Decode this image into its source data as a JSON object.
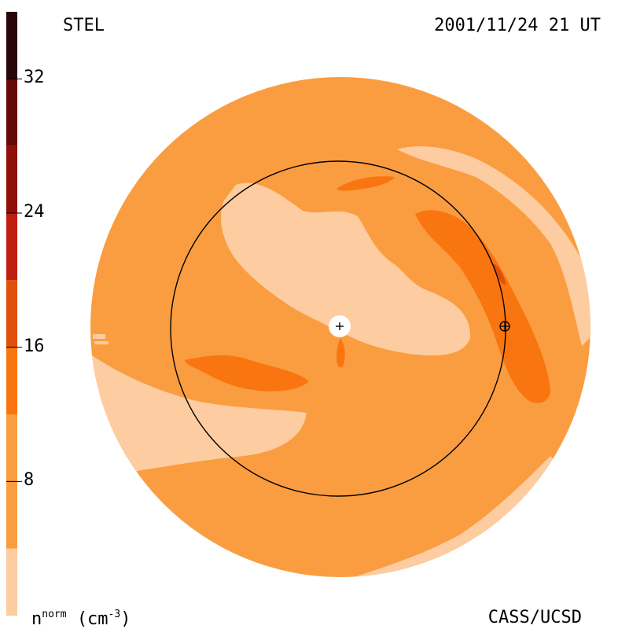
{
  "header": {
    "instrument": "STEL",
    "datetime": "2001/11/24 21 UT"
  },
  "footer": {
    "credit": "CASS/UCSD",
    "unit_base": "n",
    "unit_sup": "norm",
    "unit_rest": "(cm",
    "unit_exp": "-3",
    "unit_close": ")"
  },
  "colorbar": {
    "tick_labels": [
      "8",
      "16",
      "24",
      "32"
    ],
    "tick_values": [
      8,
      16,
      24,
      32
    ],
    "range": [
      0,
      36
    ],
    "levels": [
      {
        "min": 0,
        "max": 4,
        "color": "#fdcca0"
      },
      {
        "min": 4,
        "max": 12,
        "color": "#fa9d40"
      },
      {
        "min": 12,
        "max": 16,
        "color": "#f97510"
      },
      {
        "min": 16,
        "max": 20,
        "color": "#e0500a"
      },
      {
        "min": 20,
        "max": 24,
        "color": "#c01e0e"
      },
      {
        "min": 24,
        "max": 28,
        "color": "#901008"
      },
      {
        "min": 28,
        "max": 32,
        "color": "#660808"
      },
      {
        "min": 32,
        "max": 36,
        "color": "#2a0606"
      }
    ]
  },
  "chart_data": {
    "type": "heatmap",
    "title": "STEL",
    "subtitle": "2001/11/24 21 UT",
    "colorbar_label": "n^norm (cm^-3)",
    "colorbar_ticks": [
      8,
      16,
      24,
      32
    ],
    "colorbar_range": [
      0,
      36
    ],
    "dominant_level_value": 8,
    "markers": [
      "Sun (+) at center",
      "Earth (⊕) on reference circle"
    ]
  }
}
